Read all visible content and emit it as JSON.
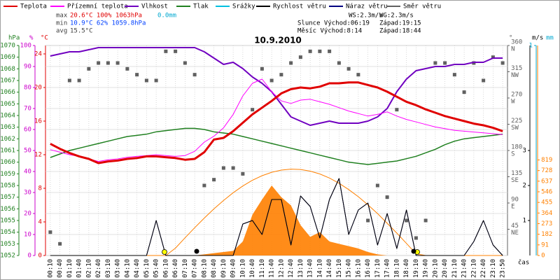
{
  "chart_data": {
    "type": "line",
    "title": "10.9.2010",
    "stats": [
      {
        "label": "max",
        "text": "20.6°C 100% 1063hPa",
        "extra": "0.0mm"
      },
      {
        "label": "min",
        "text": "10.9°C  62% 1059.8hPa"
      },
      {
        "label": "avg",
        "text": "15.5°C"
      }
    ],
    "info": [
      {
        "text": "WS:2.3m/s",
        "text2": "WG:2.3m/s"
      },
      {
        "text": "Slunce Východ:06:19",
        "text2": "Západ:19:15"
      },
      {
        "text": "Měsíc  Východ:8:14",
        "text2": "Západ:18:44"
      }
    ],
    "x_label": "čas",
    "categories": [
      "00:10",
      "00:40",
      "01:10",
      "01:40",
      "02:10",
      "02:40",
      "03:10",
      "03:40",
      "04:10",
      "04:40",
      "05:10",
      "05:40",
      "06:10",
      "06:40",
      "07:10",
      "07:40",
      "08:10",
      "08:40",
      "09:10",
      "09:40",
      "10:10",
      "10:40",
      "11:10",
      "11:40",
      "12:10",
      "12:40",
      "13:10",
      "13:40",
      "14:10",
      "14:40",
      "15:10",
      "15:40",
      "16:10",
      "16:40",
      "17:10",
      "17:40",
      "18:10",
      "18:40",
      "19:10",
      "19:40",
      "20:10",
      "20:40",
      "21:10",
      "21:40",
      "22:10",
      "22:40",
      "23:10",
      "23:50"
    ],
    "grid": true,
    "axes": {
      "press": {
        "unit": "hPa",
        "color": "#208020",
        "lim": [
          1052,
          1070
        ],
        "ticks": [
          1052,
          1053,
          1054,
          1055,
          1056,
          1057,
          1058,
          1059,
          1060,
          1061,
          1062,
          1063,
          1064,
          1065,
          1066,
          1067,
          1068,
          1069,
          1070
        ]
      },
      "hum": {
        "unit": "%",
        "color": "#cc00cc",
        "lim": [
          0,
          100
        ],
        "ticks": [
          0,
          10,
          20,
          30,
          40,
          50,
          60,
          70,
          80,
          90,
          100
        ]
      },
      "temp": {
        "unit": "°C",
        "color": "#e00000",
        "lim": [
          0,
          25
        ],
        "ticks": [
          0,
          4,
          8,
          12,
          16,
          20,
          24
        ]
      },
      "dir": {
        "unit": "°",
        "color": "#606060",
        "lim": [
          0,
          360
        ],
        "ticks": [
          45,
          90,
          135,
          180,
          225,
          270,
          315,
          360
        ],
        "names": [
          "NE",
          "E",
          "SE",
          "S",
          "SW",
          "W",
          "NW",
          "N"
        ]
      },
      "wind": {
        "unit": "m/s",
        "color": "#000000",
        "lim": [
          0,
          6
        ],
        "ticks": [
          1,
          2,
          3
        ]
      },
      "rain": {
        "unit": "mm",
        "color": "#00a8d0",
        "lim": [
          0,
          1
        ],
        "ticks": [
          1
        ]
      },
      "rad": {
        "color": "#ff8000",
        "lim": [
          0,
          1800
        ],
        "ticks": [
          0,
          91,
          182,
          273,
          364,
          455,
          546,
          637,
          728,
          819
        ]
      }
    },
    "radiation": {
      "color": "#ff8000",
      "values": [
        0,
        0,
        0,
        0,
        0,
        0,
        0,
        0,
        0,
        0,
        0,
        0,
        0,
        0,
        0,
        0,
        10,
        20,
        30,
        40,
        120,
        350,
        480,
        600,
        500,
        430,
        260,
        160,
        200,
        120,
        100,
        80,
        60,
        30,
        10,
        0,
        0,
        0,
        0,
        0,
        0,
        0,
        0,
        0,
        0,
        0,
        0,
        0
      ]
    },
    "radiation_clear": {
      "color": "#ff8000",
      "values": [
        0,
        0,
        0,
        0,
        0,
        0,
        0,
        0,
        0,
        0,
        0,
        0,
        0,
        63,
        152,
        238,
        321,
        400,
        472,
        538,
        596,
        645,
        684,
        713,
        732,
        740,
        737,
        723,
        699,
        664,
        619,
        565,
        504,
        434,
        359,
        276,
        192,
        104,
        14,
        0,
        0,
        0,
        0,
        0,
        0,
        0,
        0,
        0
      ]
    },
    "series": [
      {
        "name": "Teplota",
        "color": "#e00000",
        "axis": "temp",
        "style": "line",
        "values": [
          13.3,
          12.7,
          12.2,
          11.8,
          11.5,
          11.0,
          11.2,
          11.3,
          11.5,
          11.6,
          11.8,
          11.8,
          11.7,
          11.6,
          11.4,
          11.5,
          12.3,
          13.8,
          14.0,
          14.8,
          15.8,
          16.8,
          17.6,
          18.4,
          19.3,
          19.8,
          20.0,
          19.9,
          20.1,
          20.5,
          20.5,
          20.6,
          20.6,
          20.3,
          20.0,
          19.5,
          18.9,
          18.3,
          17.9,
          17.4,
          17.0,
          16.6,
          16.3,
          16.0,
          15.7,
          15.5,
          15.2,
          14.8
        ]
      },
      {
        "name": "Přízemní teplota",
        "color": "#ff00ff",
        "axis": "temp",
        "style": "line",
        "values": [
          12.6,
          12.3,
          12.0,
          11.8,
          11.5,
          11.2,
          11.4,
          11.5,
          11.7,
          11.8,
          11.9,
          12.0,
          11.9,
          11.8,
          11.9,
          12.4,
          13.5,
          14.2,
          15.2,
          16.8,
          19.0,
          20.5,
          21.0,
          19.5,
          18.4,
          18.1,
          18.5,
          18.6,
          18.3,
          18.0,
          17.6,
          17.2,
          16.9,
          16.6,
          16.8,
          17.1,
          16.6,
          16.2,
          15.9,
          15.6,
          15.3,
          15.1,
          14.9,
          14.8,
          14.7,
          14.6,
          14.5,
          14.4
        ]
      },
      {
        "name": "Vlhkost",
        "color": "#7000c0",
        "axis": "hum",
        "style": "line",
        "values": [
          95,
          96,
          97,
          97,
          98,
          99,
          99,
          99,
          99,
          99,
          99,
          99,
          99,
          99,
          99,
          99,
          97,
          94,
          91,
          92,
          89,
          85,
          82,
          78,
          72,
          66,
          64,
          62,
          63,
          64,
          63,
          63,
          63,
          64,
          66,
          70,
          78,
          84,
          88,
          89,
          90,
          90,
          91,
          91,
          92,
          92,
          94,
          94
        ]
      },
      {
        "name": "Tlak",
        "color": "#208020",
        "axis": "press",
        "style": "line",
        "values": [
          1060.4,
          1060.7,
          1061.0,
          1061.2,
          1061.4,
          1061.6,
          1061.8,
          1062.0,
          1062.2,
          1062.3,
          1062.4,
          1062.6,
          1062.7,
          1062.8,
          1062.9,
          1062.9,
          1062.8,
          1062.6,
          1062.5,
          1062.4,
          1062.2,
          1062.0,
          1061.8,
          1061.6,
          1061.4,
          1061.2,
          1061.0,
          1060.8,
          1060.6,
          1060.4,
          1060.2,
          1060.0,
          1059.9,
          1059.8,
          1059.9,
          1060.0,
          1060.1,
          1060.3,
          1060.5,
          1060.8,
          1061.1,
          1061.5,
          1061.8,
          1062.0,
          1062.1,
          1062.2,
          1062.3,
          1062.4
        ]
      },
      {
        "name": "Srážky",
        "color": "#00c0e0",
        "axis": "rain",
        "style": "bars",
        "values": [
          0,
          0,
          0,
          0,
          0,
          0,
          0,
          0,
          0,
          0,
          0,
          0,
          0,
          0,
          0,
          0,
          0,
          0,
          0,
          0,
          0,
          0,
          0,
          0,
          0,
          0,
          0,
          0,
          0,
          0,
          0,
          0,
          0,
          0,
          0,
          0,
          0,
          0,
          0,
          0,
          0,
          0,
          0,
          0,
          0,
          0,
          0,
          0
        ]
      },
      {
        "name": "Rychlost větru",
        "color": "#000000",
        "axis": "wind",
        "style": "line",
        "values": [
          0,
          0,
          0,
          0,
          0,
          0,
          0,
          0,
          0,
          0,
          0,
          1.0,
          0,
          0,
          0,
          0,
          0,
          0,
          0,
          0,
          0.9,
          1.0,
          0.6,
          1.6,
          1.6,
          0.3,
          1.7,
          1.4,
          0.5,
          1.6,
          2.2,
          0.6,
          1.3,
          1.5,
          0.3,
          1.2,
          0.2,
          1.3,
          0,
          0,
          0,
          0,
          0,
          0,
          0.4,
          1.0,
          0.3,
          0
        ]
      },
      {
        "name": "Náraz větru",
        "color": "#000080",
        "axis": "wind",
        "style": "line",
        "values": [
          0,
          0,
          0,
          0,
          0,
          0,
          0,
          0,
          0,
          0,
          0,
          1.0,
          0,
          0,
          0,
          0,
          0,
          0,
          0,
          0,
          0.9,
          1.0,
          0.6,
          1.6,
          1.6,
          0.3,
          1.7,
          1.4,
          0.5,
          1.6,
          2.2,
          0.6,
          1.3,
          1.5,
          0.3,
          1.2,
          0.2,
          1.3,
          0,
          0,
          0,
          0,
          0,
          0,
          0.4,
          1.0,
          0.3,
          0
        ]
      },
      {
        "name": "Směr větru",
        "color": "#606060",
        "axis": "dir",
        "style": "points",
        "values": [
          40,
          20,
          300,
          300,
          320,
          330,
          330,
          330,
          320,
          310,
          300,
          300,
          350,
          350,
          330,
          310,
          120,
          130,
          150,
          150,
          140,
          250,
          320,
          300,
          310,
          330,
          340,
          350,
          350,
          350,
          330,
          320,
          310,
          60,
          120,
          100,
          250,
          60,
          30,
          60,
          330,
          330,
          310,
          280,
          330,
          300,
          340,
          330
        ]
      }
    ]
  }
}
